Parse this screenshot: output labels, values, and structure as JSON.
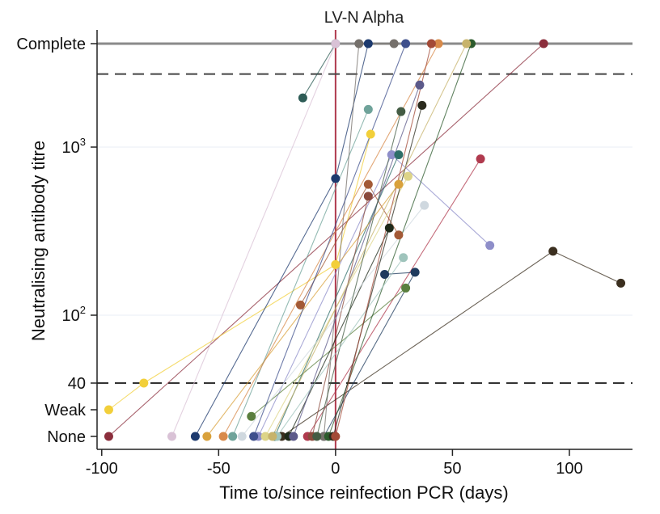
{
  "chart_data": {
    "type": "scatter",
    "title": "LV-N Alpha",
    "xlabel": "Time to/since reinfection PCR (days)",
    "ylabel": "Neutralising antibody titre",
    "xlim": [
      -102,
      127
    ],
    "xticks": [
      -100,
      -50,
      0,
      50,
      100
    ],
    "xtick_labels": [
      "-100",
      "-50",
      "0",
      "50",
      "100"
    ],
    "y_scale": "log10 with categorical floor/ceiling",
    "y_ticks": [
      {
        "label": "None",
        "value": 15
      },
      {
        "label": "Weak",
        "value": 25
      },
      {
        "label": "40",
        "value": 40
      },
      {
        "label_base": "10",
        "label_exp": "2",
        "value": 100
      },
      {
        "label_base": "10",
        "label_exp": "3",
        "value": 1000
      },
      {
        "label": "Complete",
        "value": 4300
      }
    ],
    "reference_lines": [
      {
        "name": "reinfection-day-line",
        "x": 0,
        "color": "#b03a4e"
      },
      {
        "name": "complete-line",
        "y": 4300,
        "style": "solid",
        "color": "#8a8a8a"
      },
      {
        "name": "upper-threshold-line",
        "y": 2800,
        "style": "dashed",
        "color": "#444444"
      },
      {
        "name": "threshold-40-line",
        "y": 40,
        "style": "dashed",
        "color": "#333333"
      }
    ],
    "series": [
      {
        "name": "s1",
        "color": "#8b2e3c",
        "points": [
          [
            -97,
            15
          ],
          [
            89,
            4300
          ]
        ]
      },
      {
        "name": "s2",
        "color": "#f2cf3a",
        "points": [
          [
            -97,
            25
          ],
          [
            -82,
            40
          ],
          [
            0,
            200
          ],
          [
            15,
            1200
          ]
        ]
      },
      {
        "name": "s3",
        "color": "#3b2f1f",
        "points": [
          [
            -23,
            15
          ],
          [
            93,
            240
          ],
          [
            122,
            155
          ]
        ]
      },
      {
        "name": "s4",
        "color": "#2e5c56",
        "points": [
          [
            -14,
            2000
          ],
          [
            0,
            4300
          ]
        ]
      },
      {
        "name": "s5",
        "color": "#1d3a6e",
        "points": [
          [
            -60,
            15
          ],
          [
            0,
            650
          ],
          [
            14,
            4300
          ]
        ]
      },
      {
        "name": "s6",
        "color": "#a35a36",
        "points": [
          [
            -15,
            115
          ],
          [
            14,
            600
          ],
          [
            27,
            300
          ]
        ]
      },
      {
        "name": "s7",
        "color": "#b03a4e",
        "points": [
          [
            -12,
            15
          ],
          [
            62,
            850
          ]
        ]
      },
      {
        "name": "s8",
        "color": "#8e8ec9",
        "points": [
          [
            -33,
            15
          ],
          [
            24,
            900
          ],
          [
            66,
            260
          ]
        ]
      },
      {
        "name": "s9",
        "color": "#5a7f3e",
        "points": [
          [
            -36,
            22
          ],
          [
            30,
            145
          ]
        ]
      },
      {
        "name": "s10",
        "color": "#2e6e68",
        "points": [
          [
            -26,
            15
          ],
          [
            27,
            900
          ]
        ]
      },
      {
        "name": "s11",
        "color": "#d9a13b",
        "points": [
          [
            -55,
            15
          ],
          [
            27,
            600
          ]
        ]
      },
      {
        "name": "s12",
        "color": "#6fa39a",
        "points": [
          [
            -44,
            15
          ],
          [
            14,
            1700
          ]
        ]
      },
      {
        "name": "s13",
        "color": "#d9c2d6",
        "points": [
          [
            -70,
            15
          ],
          [
            0,
            4300
          ]
        ]
      },
      {
        "name": "s14",
        "color": "#8a4a3c",
        "points": [
          [
            -10,
            15
          ],
          [
            14,
            510
          ]
        ]
      },
      {
        "name": "s15",
        "color": "#1f3b5e",
        "points": [
          [
            -5,
            15
          ],
          [
            34,
            180
          ],
          [
            21,
            175
          ]
        ]
      },
      {
        "name": "s16",
        "color": "#ddd488",
        "points": [
          [
            -30,
            15
          ],
          [
            31,
            670
          ]
        ]
      },
      {
        "name": "s17",
        "color": "#1e2a1a",
        "points": [
          [
            -20,
            15
          ],
          [
            23,
            330
          ]
        ]
      },
      {
        "name": "s18",
        "color": "#cfd8df",
        "points": [
          [
            -40,
            15
          ],
          [
            38,
            450
          ]
        ]
      },
      {
        "name": "s19",
        "color": "#75706b",
        "points": [
          [
            -5,
            15
          ],
          [
            10,
            4300
          ],
          [
            25,
            4300
          ]
        ]
      },
      {
        "name": "s20",
        "color": "#d88a4a",
        "points": [
          [
            -48,
            15
          ],
          [
            44,
            4300
          ]
        ]
      },
      {
        "name": "s21",
        "color": "#2d5b2d",
        "points": [
          [
            -3,
            15
          ],
          [
            58,
            4300
          ]
        ]
      },
      {
        "name": "s22",
        "color": "#5c5a8a",
        "points": [
          [
            -18,
            15
          ],
          [
            36,
            2400
          ]
        ]
      },
      {
        "name": "s23",
        "color": "#445c44",
        "points": [
          [
            -8,
            15
          ],
          [
            28,
            1650
          ]
        ]
      },
      {
        "name": "s24",
        "color": "#9fc4bc",
        "points": [
          [
            -25,
            15
          ],
          [
            29,
            220
          ]
        ]
      },
      {
        "name": "s25",
        "color": "#2b2b1d",
        "points": [
          [
            -1,
            15
          ],
          [
            37,
            1800
          ]
        ]
      },
      {
        "name": "s26",
        "color": "#3e4f8c",
        "points": [
          [
            -35,
            15
          ],
          [
            30,
            4300
          ]
        ]
      },
      {
        "name": "s27",
        "color": "#a34a37",
        "points": [
          [
            0,
            15
          ],
          [
            41,
            4300
          ]
        ]
      },
      {
        "name": "s28",
        "color": "#c7b36b",
        "points": [
          [
            -27,
            15
          ],
          [
            56,
            4300
          ]
        ]
      }
    ]
  }
}
